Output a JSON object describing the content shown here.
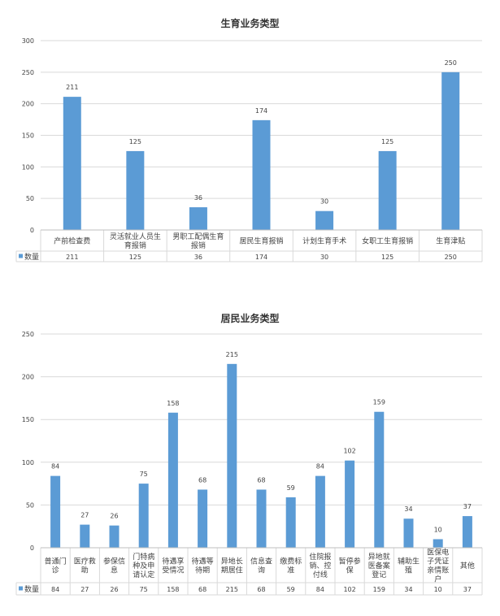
{
  "chart_data": [
    {
      "type": "bar",
      "title": "生育业务类型",
      "categories": [
        "产前检查费",
        "灵活就业人员生育报销",
        "男职工配偶生育报销",
        "居民生育报销",
        "计划生育手术",
        "女职工生育报销",
        "生育津贴"
      ],
      "series": [
        {
          "name": "数量",
          "values": [
            211,
            125,
            36,
            174,
            30,
            125,
            250
          ]
        }
      ],
      "ylim": [
        0,
        300
      ],
      "yticks": [
        0,
        50,
        100,
        150,
        200,
        250,
        300
      ],
      "grid": true,
      "legend": "data-table",
      "colors": {
        "bar": "#5b9bd5"
      }
    },
    {
      "type": "bar",
      "title": "居民业务类型",
      "categories": [
        "普通门诊",
        "医疗救助",
        "参保信息",
        "门特病种及申请认定",
        "待遇享受情况",
        "待遇等待期",
        "异地长期居住",
        "信息查询",
        "缴费标准",
        "住院报销、控付线",
        "暂停参保",
        "异地就医备案登记",
        "辅助生殖",
        "医保电子凭证亲情账户",
        "其他"
      ],
      "series": [
        {
          "name": "数量",
          "values": [
            84,
            27,
            26,
            75,
            158,
            68,
            215,
            68,
            59,
            84,
            102,
            159,
            34,
            10,
            37
          ]
        }
      ],
      "ylim": [
        0,
        250
      ],
      "yticks": [
        0,
        50,
        100,
        150,
        200,
        250
      ],
      "grid": true,
      "legend": "data-table",
      "colors": {
        "bar": "#5b9bd5"
      }
    }
  ]
}
